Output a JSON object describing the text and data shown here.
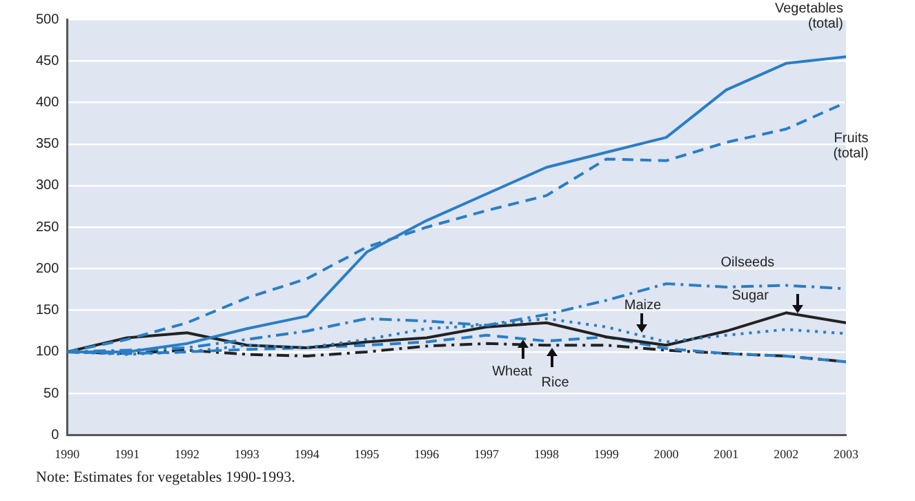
{
  "chart_data": {
    "type": "line",
    "x": [
      1990,
      1991,
      1992,
      1993,
      1994,
      1995,
      1996,
      1997,
      1998,
      1999,
      2000,
      2001,
      2002,
      2003
    ],
    "xlim": [
      1990,
      2003
    ],
    "xticks": [
      1990,
      1991,
      1992,
      1993,
      1994,
      1995,
      1996,
      1997,
      1998,
      1999,
      2000,
      2001,
      2002,
      2003
    ],
    "ylim": [
      0,
      500
    ],
    "yticks": [
      0,
      50,
      100,
      150,
      200,
      250,
      300,
      350,
      400,
      450,
      500
    ],
    "grid": "y",
    "legend": false,
    "marker": "none",
    "series": [
      {
        "color": "#2a7ec4",
        "line_style": "solid",
        "values": [
          100,
          100,
          110,
          128,
          143,
          220,
          258,
          290,
          322,
          340,
          358,
          415,
          447,
          455
        ]
      },
      {
        "color": "#2a7ec4",
        "line_style": "dashed",
        "values": [
          100,
          115,
          135,
          165,
          188,
          226,
          250,
          270,
          288,
          332,
          330,
          352,
          368,
          400
        ]
      },
      {
        "color": "#2a7ec4",
        "line_style": "dashdot",
        "values": [
          100,
          102,
          105,
          115,
          125,
          140,
          137,
          132,
          145,
          162,
          182,
          178,
          180,
          176
        ]
      },
      {
        "color": "#2a7ec4",
        "line_style": "dotted",
        "values": [
          100,
          97,
          100,
          108,
          105,
          115,
          128,
          132,
          140,
          130,
          112,
          120,
          127,
          122
        ]
      },
      {
        "color": "#222222",
        "line_style": "solid",
        "values": [
          100,
          117,
          123,
          108,
          105,
          112,
          117,
          130,
          135,
          118,
          108,
          125,
          147,
          135
        ]
      },
      {
        "color": "#2a7ec4",
        "line_style": "dashed",
        "values": [
          100,
          98,
          100,
          103,
          105,
          108,
          112,
          120,
          113,
          118,
          104,
          98,
          95,
          88
        ]
      },
      {
        "color": "#222222",
        "line_style": "dashdot",
        "values": [
          100,
          98,
          102,
          97,
          95,
          100,
          107,
          110,
          108,
          108,
          102,
          98,
          95,
          88
        ]
      }
    ],
    "annotations": [
      {
        "text": "Vegetables (total)",
        "x": 2003,
        "y": 455
      },
      {
        "text": "Fruits (total)",
        "x": 2002.5,
        "y": 385
      },
      {
        "text": "Oilseeds",
        "x": 2001,
        "y": 180
      },
      {
        "text": "Maize",
        "x": 1999.6,
        "y": 122
      },
      {
        "text": "Sugar",
        "x": 2002.2,
        "y": 145
      },
      {
        "text": "Wheat",
        "x": 1997.6,
        "y": 118
      },
      {
        "text": "Rice",
        "x": 1998.1,
        "y": 108
      },
      "Note: Estimates for vegetables 1990-1993."
    ]
  }
}
